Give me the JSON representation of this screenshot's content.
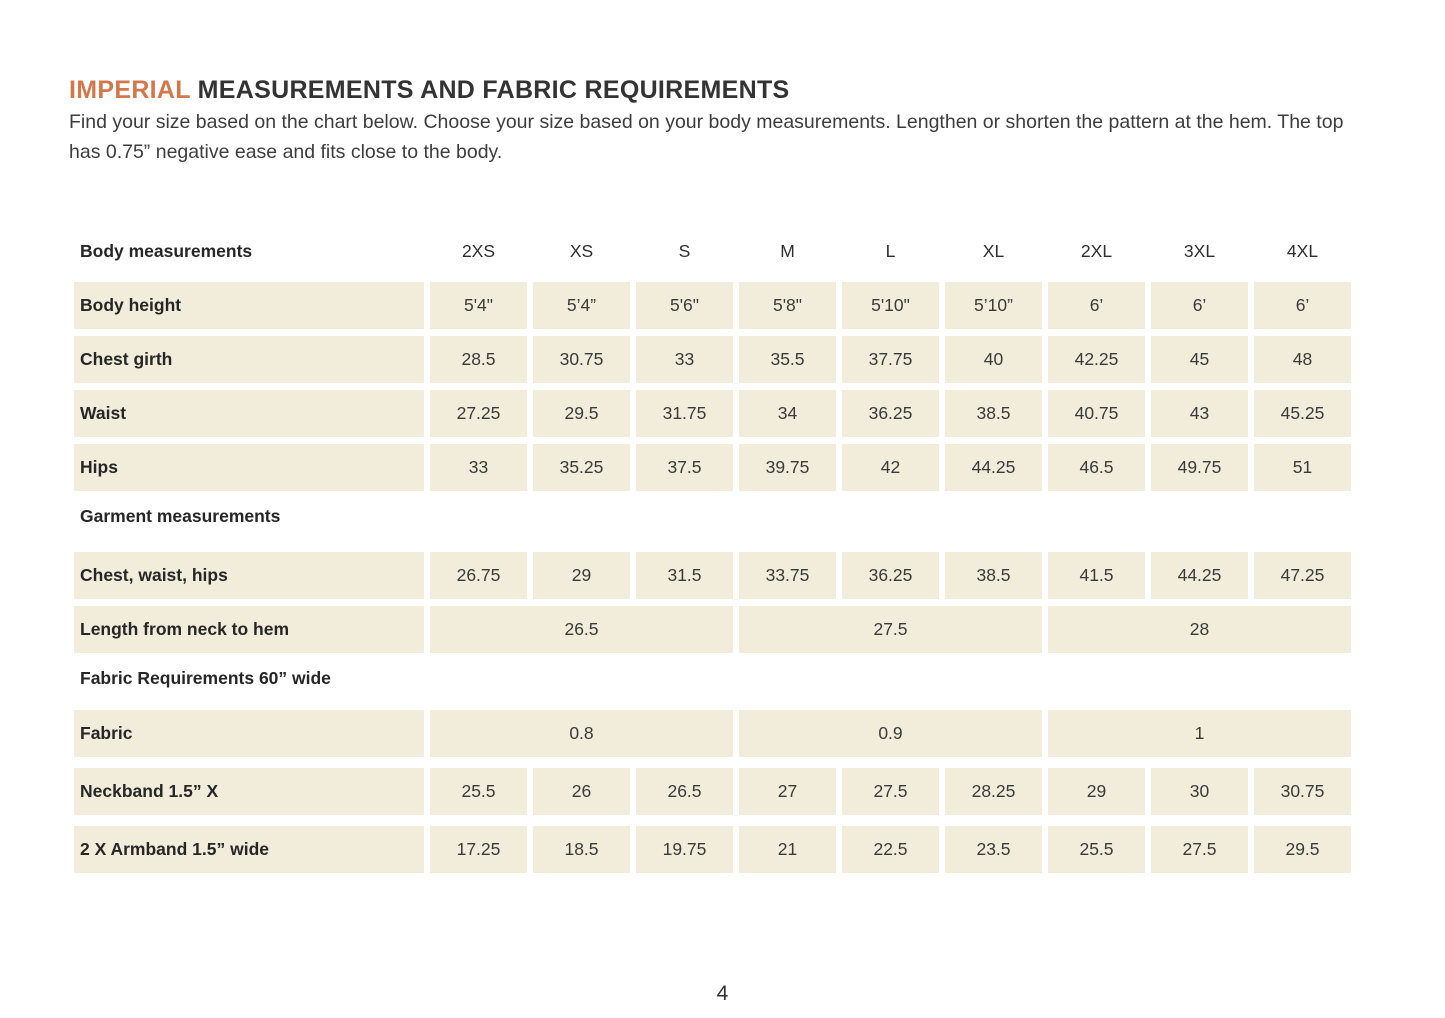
{
  "title": {
    "accent": "IMPERIAL",
    "rest": "MEASUREMENTS AND FABRIC REQUIREMENTS"
  },
  "intro": "Find your size based on the chart below. Choose your size based on your body measurements. Lengthen or shorten the pattern at the hem. The top has 0.75” negative ease and fits close to the body.",
  "page_number": "4",
  "colors": {
    "accent_orange": "#d2794c",
    "cell_beige": "#f2ecda",
    "text_dark": "#333333"
  },
  "chart_data": {
    "type": "table",
    "title": "IMPERIAL MEASUREMENTS AND FABRIC REQUIREMENTS",
    "columns": [
      "2XS",
      "XS",
      "S",
      "M",
      "L",
      "XL",
      "2XL",
      "3XL",
      "4XL"
    ],
    "rows": [
      {
        "label": "Body height",
        "values": [
          "5'4\"",
          "5’4”",
          "5'6\"",
          "5'8\"",
          "5'10\"",
          "5’10”",
          "6’",
          "6’",
          "6’"
        ]
      },
      {
        "label": "Chest girth",
        "values": [
          "28.5",
          "30.75",
          "33",
          "35.5",
          "37.75",
          "40",
          "42.25",
          "45",
          "48"
        ]
      },
      {
        "label": "Waist",
        "values": [
          "27.25",
          "29.5",
          "31.75",
          "34",
          "36.25",
          "38.5",
          "40.75",
          "43",
          "45.25"
        ]
      },
      {
        "label": "Hips",
        "values": [
          "33",
          "35.25",
          "37.5",
          "39.75",
          "42",
          "44.25",
          "46.5",
          "49.75",
          "51"
        ]
      },
      {
        "label": "Chest, waist, hips",
        "values": [
          "26.75",
          "29",
          "31.5",
          "33.75",
          "36.25",
          "38.5",
          "41.5",
          "44.25",
          "47.25"
        ]
      },
      {
        "label": "Length from neck to hem",
        "values": [
          "26.5",
          "26.5",
          "26.5",
          "27.5",
          "27.5",
          "27.5",
          "28",
          "28",
          "28"
        ]
      },
      {
        "label": "Fabric",
        "values": [
          "0.8",
          "0.8",
          "0.8",
          "0.9",
          "0.9",
          "0.9",
          "1",
          "1",
          "1"
        ]
      },
      {
        "label": "Neckband 1.5” X",
        "values": [
          "25.5",
          "26",
          "26.5",
          "27",
          "27.5",
          "28.25",
          "29",
          "30",
          "30.75"
        ]
      },
      {
        "label": "2 X Armband 1.5” wide",
        "values": [
          "17.25",
          "18.5",
          "19.75",
          "21",
          "22.5",
          "23.5",
          "25.5",
          "27.5",
          "29.5"
        ]
      }
    ]
  },
  "table": {
    "header_label": "Body measurements",
    "sizes": [
      "2XS",
      "XS",
      "S",
      "M",
      "L",
      "XL",
      "2XL",
      "3XL",
      "4XL"
    ],
    "sections": [
      {
        "header": null,
        "rows": [
          {
            "label": "Body height",
            "values": [
              "5'4\"",
              "5’4”",
              "5'6\"",
              "5'8\"",
              "5'10\"",
              "5’10”",
              "6’",
              "6’",
              "6’"
            ]
          },
          {
            "label": "Chest girth",
            "values": [
              "28.5",
              "30.75",
              "33",
              "35.5",
              "37.75",
              "40",
              "42.25",
              "45",
              "48"
            ]
          },
          {
            "label": "Waist",
            "values": [
              "27.25",
              "29.5",
              "31.75",
              "34",
              "36.25",
              "38.5",
              "40.75",
              "43",
              "45.25"
            ]
          },
          {
            "label": "Hips",
            "values": [
              "33",
              "35.25",
              "37.5",
              "39.75",
              "42",
              "44.25",
              "46.5",
              "49.75",
              "51"
            ]
          }
        ]
      },
      {
        "header": "Garment measurements",
        "rows": [
          {
            "label": "Chest, waist, hips",
            "values": [
              "26.75",
              "29",
              "31.5",
              "33.75",
              "36.25",
              "38.5",
              "41.5",
              "44.25",
              "47.25"
            ]
          },
          {
            "label": "Length from neck to hem",
            "merged": [
              "26.5",
              "27.5",
              "28"
            ]
          }
        ]
      },
      {
        "header": "Fabric Requirements 60” wide",
        "rows": [
          {
            "label": "Fabric",
            "merged": [
              "0.8",
              "0.9",
              "1"
            ]
          },
          {
            "label": "Neckband 1.5” X",
            "values": [
              "25.5",
              "26",
              "26.5",
              "27",
              "27.5",
              "28.25",
              "29",
              "30",
              "30.75"
            ]
          },
          {
            "label": "2 X Armband 1.5” wide",
            "values": [
              "17.25",
              "18.5",
              "19.75",
              "21",
              "22.5",
              "23.5",
              "25.5",
              "27.5",
              "29.5"
            ]
          }
        ]
      }
    ]
  }
}
